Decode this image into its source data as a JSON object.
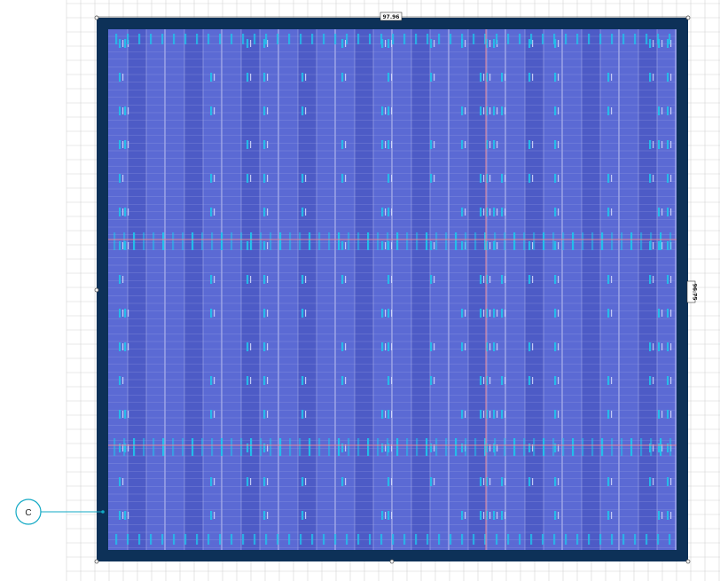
{
  "dimensions": {
    "width_label": "97.96",
    "height_label": "96.75"
  },
  "callout": {
    "label": "C"
  },
  "colors": {
    "frame": "#0d3158",
    "die_light": "#5b6ad4",
    "die_dark": "#4d5bc6",
    "macro_cyan": "#21c2ec",
    "route_red": "#e4869a",
    "callout_line": "#12a9c4",
    "grid": "#d4d4d4"
  }
}
